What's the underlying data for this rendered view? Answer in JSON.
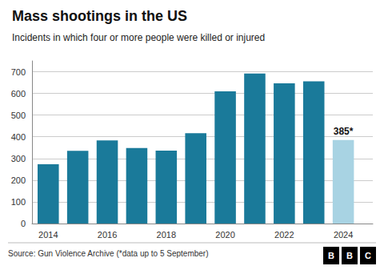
{
  "chart_data": {
    "type": "bar",
    "title": "Mass shootings in the US",
    "subtitle": "Incidents in which four or more people were killed or injured",
    "x": [
      2014,
      2015,
      2016,
      2017,
      2018,
      2019,
      2020,
      2021,
      2022,
      2023,
      2024
    ],
    "values": [
      273,
      335,
      383,
      348,
      336,
      417,
      610,
      692,
      647,
      656,
      385
    ],
    "colors": [
      "#1a7a9a",
      "#1a7a9a",
      "#1a7a9a",
      "#1a7a9a",
      "#1a7a9a",
      "#1a7a9a",
      "#1a7a9a",
      "#1a7a9a",
      "#1a7a9a",
      "#1a7a9a",
      "#a8d3e3"
    ],
    "annotations": [
      {
        "x": 2024,
        "text": "385*",
        "color": "#111111"
      }
    ],
    "xlim": [
      2013.45,
      2025.0
    ],
    "xticks": [
      2014,
      2016,
      2018,
      2020,
      2022,
      2024
    ],
    "ylim": [
      0,
      750
    ],
    "yticks": [
      0,
      100,
      200,
      300,
      400,
      500,
      600,
      700
    ],
    "grid": true,
    "source": "Source: Gun Violence Archive (*data up to 5 September)",
    "logo": [
      "B",
      "B",
      "C"
    ]
  }
}
